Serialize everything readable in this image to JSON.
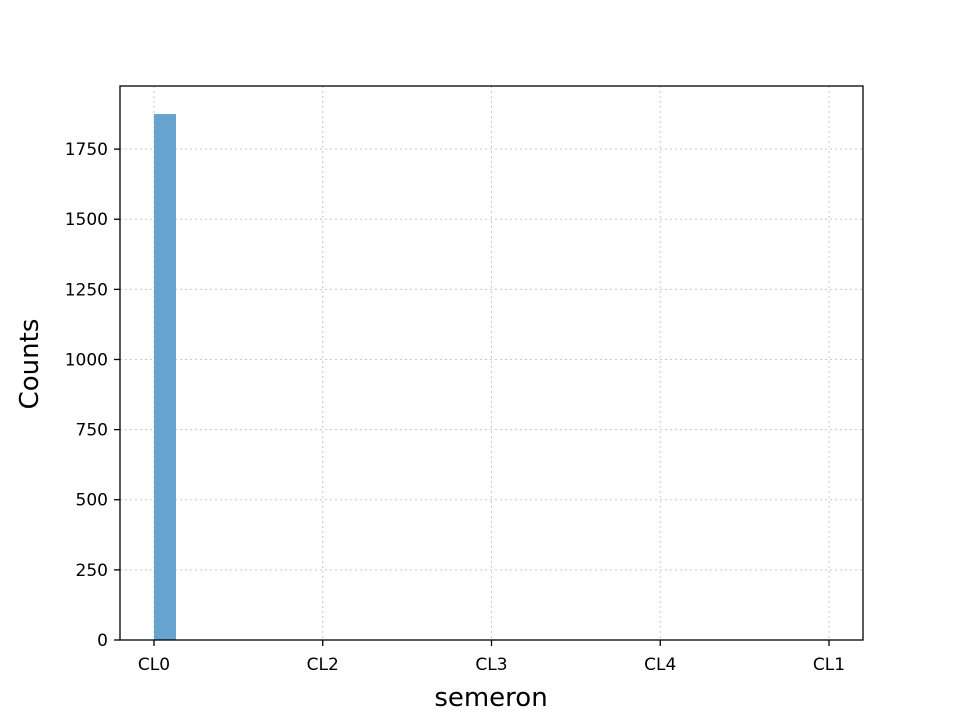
{
  "chart_data": {
    "type": "bar",
    "title": "",
    "xlabel": "semeron",
    "ylabel": "Counts",
    "categories": [
      "CL0",
      "CL2",
      "CL3",
      "CL4",
      "CL1"
    ],
    "values": [
      1875,
      0,
      0,
      0,
      0
    ],
    "ylim": [
      0,
      1975
    ],
    "yticks": [
      0,
      250,
      500,
      750,
      1000,
      1250,
      1500,
      1750
    ],
    "ytick_labels": [
      "0",
      "250",
      "500",
      "750",
      "1000",
      "1250",
      "1500",
      "1750"
    ],
    "grid": true,
    "bar_color": "#67a3cf"
  }
}
